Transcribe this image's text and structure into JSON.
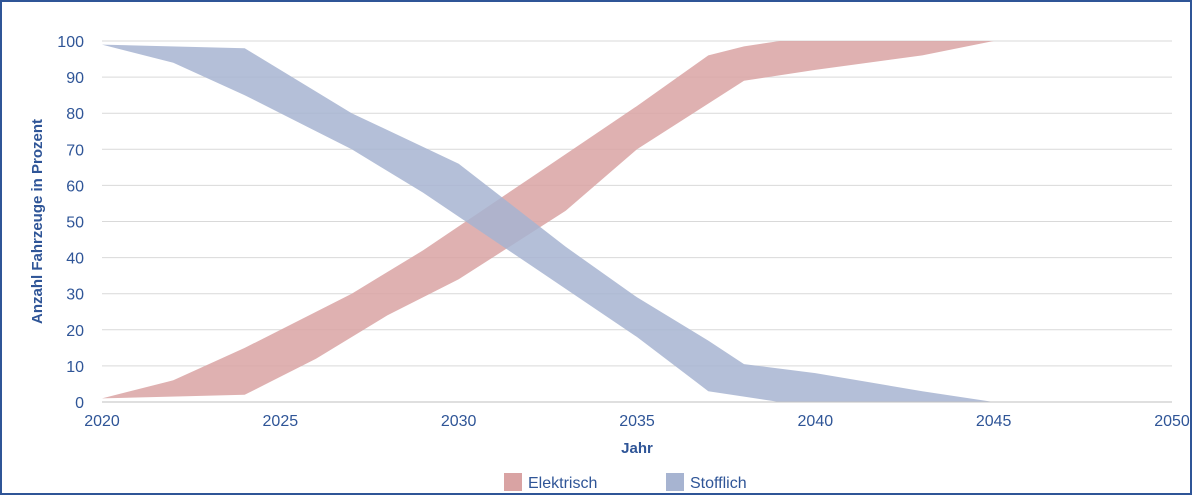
{
  "chart_data": {
    "type": "area",
    "xlabel": "Jahr",
    "ylabel": "Anzahl Fahrzeuge in Prozent",
    "xlim": [
      2020,
      2050
    ],
    "ylim": [
      0,
      100
    ],
    "x_ticks": [
      "2020",
      "2025",
      "2030",
      "2035",
      "2040",
      "2045",
      "2050"
    ],
    "y_ticks": [
      "0",
      "10",
      "20",
      "30",
      "40",
      "50",
      "60",
      "70",
      "80",
      "90",
      "100"
    ],
    "grid": "horizontal",
    "legend_position": "bottom",
    "series": [
      {
        "name": "Elektrisch",
        "color": "#d9a3a3",
        "upper": [
          [
            2020,
            1
          ],
          [
            2022,
            6
          ],
          [
            2024,
            15
          ],
          [
            2027,
            30
          ],
          [
            2029,
            42
          ],
          [
            2032,
            62
          ],
          [
            2035,
            82
          ],
          [
            2037,
            96
          ],
          [
            2038,
            98.5
          ],
          [
            2039,
            100
          ],
          [
            2050,
            100
          ]
        ],
        "lower": [
          [
            2020,
            1
          ],
          [
            2024,
            2
          ],
          [
            2026,
            12
          ],
          [
            2028,
            24
          ],
          [
            2030,
            34
          ],
          [
            2033,
            53
          ],
          [
            2035,
            70
          ],
          [
            2038,
            89
          ],
          [
            2040,
            92
          ],
          [
            2043,
            96
          ],
          [
            2045,
            100
          ],
          [
            2050,
            100
          ]
        ]
      },
      {
        "name": "Stofflich",
        "color": "#a7b4d1",
        "upper": [
          [
            2020,
            99
          ],
          [
            2024,
            98
          ],
          [
            2027,
            80
          ],
          [
            2030,
            66
          ],
          [
            2033,
            43
          ],
          [
            2035,
            29
          ],
          [
            2037,
            17
          ],
          [
            2038,
            10.5
          ],
          [
            2040,
            8
          ],
          [
            2043,
            3
          ],
          [
            2045,
            0
          ],
          [
            2050,
            0
          ]
        ],
        "lower": [
          [
            2020,
            99
          ],
          [
            2022,
            94
          ],
          [
            2024,
            85
          ],
          [
            2027,
            70
          ],
          [
            2029,
            58
          ],
          [
            2032,
            38
          ],
          [
            2035,
            18
          ],
          [
            2037,
            3
          ],
          [
            2038,
            1.5
          ],
          [
            2039,
            0
          ],
          [
            2050,
            0
          ]
        ]
      }
    ]
  }
}
